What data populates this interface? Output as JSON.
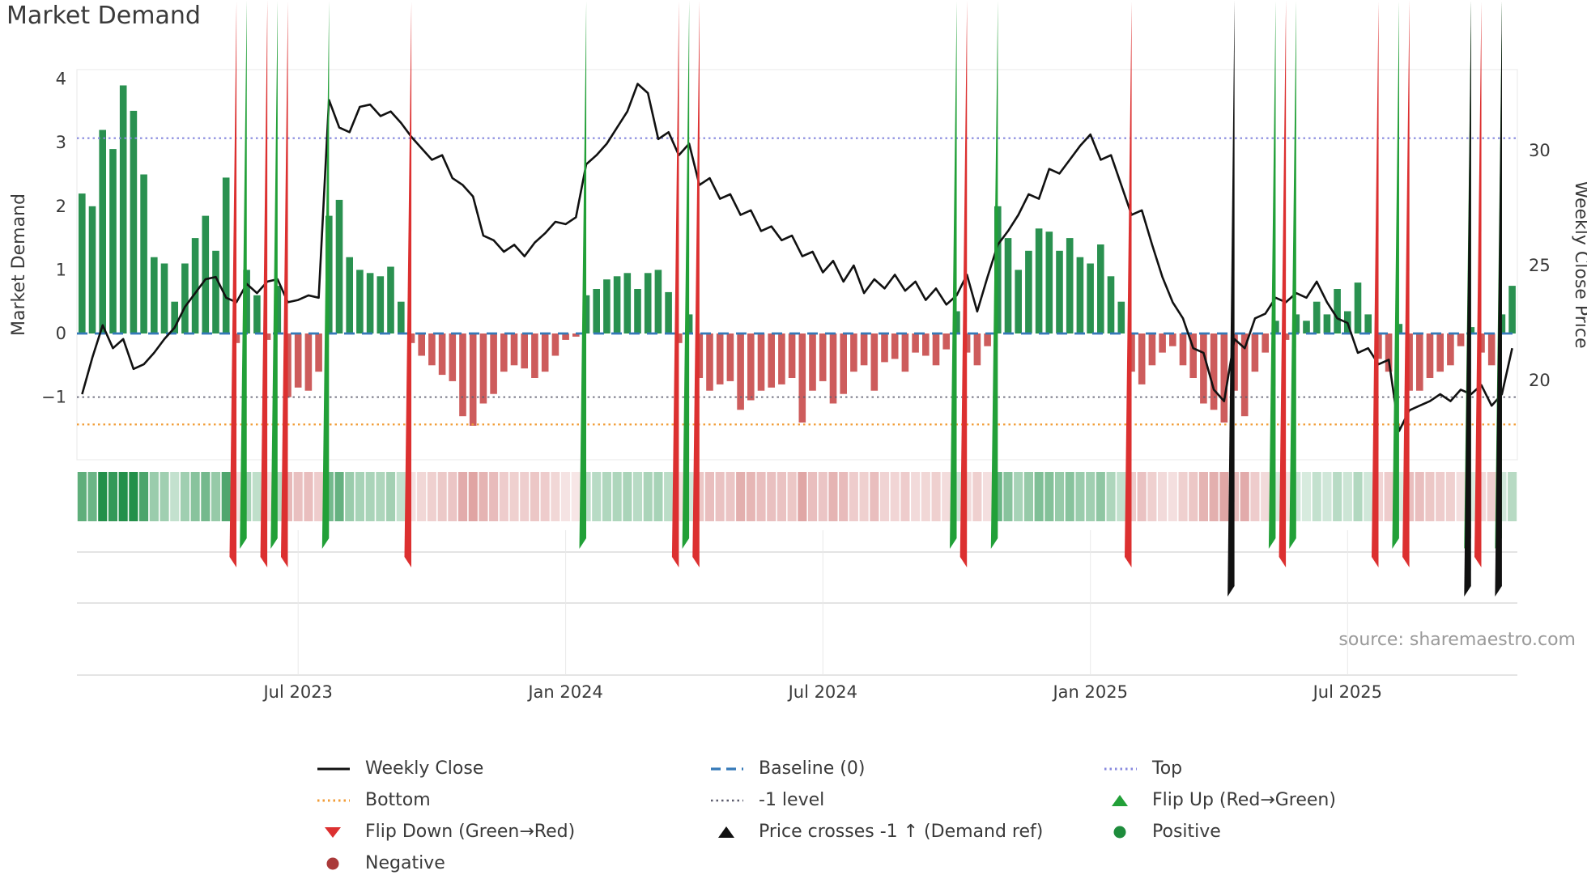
{
  "title": "Market Demand",
  "source_text": "source: sharemaestro.com",
  "colors": {
    "bar_positive": "#2a9150",
    "bar_negative": "#cd5c5c",
    "heat_positive": "#23904a",
    "heat_negative": "#c3504f",
    "line": "#111111",
    "baseline": "#3579b8",
    "top": "#8789de",
    "minus_one": "#5c5c6e",
    "bottom": "#f29d38",
    "flip_up": "#22a038",
    "flip_down": "#dc3030",
    "price_cross": "#111111",
    "positive_dot": "#1e8c3c",
    "negative_dot": "#aa3939"
  },
  "chart_data": {
    "type": "bar+line",
    "title": "Market Demand",
    "ylabel_left": "Market Demand",
    "ylabel_right": "Weekly Close Price",
    "ylim_left": [
      -2.1,
      4.05
    ],
    "ylim_right": [
      16.3,
      33.2
    ],
    "grid": "off",
    "legend_position": "bottom",
    "reference_lines": {
      "baseline": 0,
      "top": 3.07,
      "minus_one": -1,
      "bottom": -1.43
    },
    "left_ticks": [
      {
        "label": "4",
        "value": 4
      },
      {
        "label": "3",
        "value": 3
      },
      {
        "label": "2",
        "value": 2
      },
      {
        "label": "1",
        "value": 1
      },
      {
        "label": "0",
        "value": 0
      },
      {
        "label": "−1",
        "value": -1
      }
    ],
    "right_ticks": [
      {
        "label": "30",
        "value": 30
      },
      {
        "label": "25",
        "value": 25
      },
      {
        "label": "20",
        "value": 20
      }
    ],
    "x_ticks": [
      {
        "label": "Jul 2023",
        "index": 21
      },
      {
        "label": "Jan 2024",
        "index": 47
      },
      {
        "label": "Jul 2024",
        "index": 72
      },
      {
        "label": "Jan 2025",
        "index": 98
      },
      {
        "label": "Jul 2025",
        "index": 123
      }
    ],
    "bar_series": {
      "name": "Market Demand (weekly)",
      "values": [
        2.2,
        2.0,
        3.2,
        2.9,
        3.9,
        3.5,
        2.5,
        1.2,
        1.1,
        0.5,
        1.1,
        1.5,
        1.85,
        1.3,
        2.45,
        -0.15,
        1.0,
        0.6,
        -0.1,
        0.75,
        -1.0,
        -0.85,
        -0.9,
        -0.6,
        1.85,
        2.1,
        1.2,
        1.0,
        0.95,
        0.9,
        1.05,
        0.5,
        -0.15,
        -0.35,
        -0.5,
        -0.65,
        -0.75,
        -1.3,
        -1.45,
        -1.1,
        -0.95,
        -0.6,
        -0.5,
        -0.55,
        -0.7,
        -0.6,
        -0.35,
        -0.1,
        -0.05,
        0.6,
        0.7,
        0.85,
        0.9,
        0.95,
        0.7,
        0.95,
        1.0,
        0.65,
        -0.15,
        0.3,
        -0.7,
        -0.9,
        -0.8,
        -0.75,
        -1.2,
        -1.05,
        -0.9,
        -0.85,
        -0.8,
        -0.7,
        -1.4,
        -0.9,
        -0.75,
        -1.1,
        -0.95,
        -0.6,
        -0.5,
        -0.9,
        -0.45,
        -0.4,
        -0.6,
        -0.3,
        -0.35,
        -0.5,
        -0.25,
        0.35,
        -0.3,
        -0.5,
        -0.2,
        2.0,
        1.5,
        1.0,
        1.3,
        1.65,
        1.6,
        1.3,
        1.5,
        1.2,
        1.1,
        1.4,
        0.9,
        0.5,
        -0.6,
        -0.8,
        -0.5,
        -0.3,
        -0.2,
        -0.5,
        -0.7,
        -1.1,
        -1.2,
        -1.4,
        -0.9,
        -1.3,
        -0.6,
        -0.3,
        0.2,
        -0.1,
        0.3,
        0.2,
        0.5,
        0.3,
        0.7,
        0.35,
        0.8,
        0.3,
        -0.4,
        -0.6,
        0.15,
        -0.9,
        -0.9,
        -0.7,
        -0.6,
        -0.5,
        -0.2,
        0.1,
        -0.3,
        -0.5,
        0.3,
        0.75
      ]
    },
    "line_series": {
      "name": "Weekly Close",
      "values": [
        19.4,
        21.0,
        22.4,
        21.4,
        21.8,
        20.5,
        20.7,
        21.2,
        21.8,
        22.3,
        23.2,
        23.8,
        24.4,
        24.5,
        23.6,
        23.4,
        24.2,
        23.8,
        24.3,
        24.4,
        23.4,
        23.5,
        23.7,
        23.6,
        32.2,
        31.0,
        30.8,
        31.9,
        32.0,
        31.5,
        31.7,
        31.2,
        30.6,
        30.1,
        29.6,
        29.8,
        28.8,
        28.5,
        28.0,
        26.3,
        26.1,
        25.6,
        25.9,
        25.4,
        26.0,
        26.4,
        26.9,
        26.8,
        27.1,
        29.4,
        29.8,
        30.3,
        31.0,
        31.7,
        32.9,
        32.5,
        30.5,
        30.8,
        29.8,
        30.3,
        28.5,
        28.8,
        27.9,
        28.1,
        27.2,
        27.4,
        26.5,
        26.7,
        26.1,
        26.3,
        25.4,
        25.6,
        24.7,
        25.2,
        24.3,
        25.0,
        23.8,
        24.4,
        24.0,
        24.6,
        23.9,
        24.3,
        23.5,
        24.0,
        23.3,
        23.7,
        24.6,
        23.0,
        24.5,
        25.9,
        26.5,
        27.2,
        28.1,
        27.9,
        29.2,
        29.0,
        29.6,
        30.2,
        30.7,
        29.6,
        29.8,
        28.5,
        27.2,
        27.4,
        25.9,
        24.5,
        23.4,
        22.7,
        21.4,
        21.2,
        19.6,
        19.1,
        21.8,
        21.4,
        22.7,
        22.9,
        23.6,
        23.4,
        23.8,
        23.6,
        24.3,
        23.4,
        22.7,
        22.5,
        21.2,
        21.4,
        20.7,
        20.9,
        17.8,
        18.7,
        18.9,
        19.1,
        19.4,
        19.1,
        19.6,
        19.4,
        19.8,
        18.9,
        19.4,
        21.4
      ]
    },
    "markers": {
      "flip_up": [
        16,
        19,
        24,
        49,
        59,
        85,
        89,
        116,
        118,
        128,
        135,
        138
      ],
      "flip_down": [
        15,
        18,
        20,
        32,
        58,
        60,
        86,
        102,
        117,
        126,
        129,
        136
      ],
      "price_cross_up": [
        112,
        135,
        138
      ]
    },
    "legend": {
      "items": [
        {
          "label": "Weekly Close"
        },
        {
          "label": "Baseline (0)"
        },
        {
          "label": "Top"
        },
        {
          "label": "Bottom"
        },
        {
          "label": "-1 level"
        },
        {
          "label": "Flip Up (Red→Green)"
        },
        {
          "label": "Flip Down (Green→Red)"
        },
        {
          "label": "Price crosses -1 ↑ (Demand ref)"
        },
        {
          "label": "Positive"
        },
        {
          "label": "Negative"
        }
      ]
    }
  }
}
